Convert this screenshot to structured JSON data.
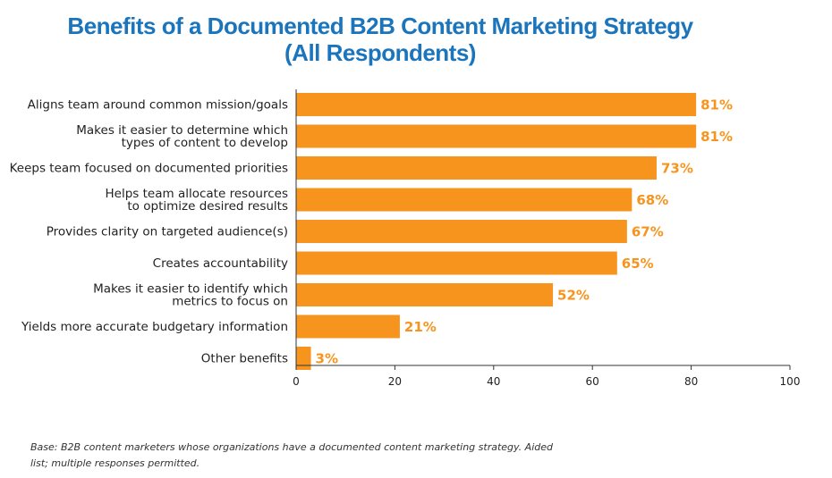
{
  "title_line1": "Benefits of a Documented B2B Content Marketing Strategy",
  "title_line2": "(All Respondents)",
  "footnote": "Base: B2B content marketers whose organizations have a documented content marketing strategy. Aided list; multiple responses permitted.",
  "chart_data": {
    "type": "bar",
    "orientation": "horizontal",
    "categories": [
      [
        "Aligns team around common mission/goals"
      ],
      [
        "Makes it easier to determine which",
        "types of content to develop"
      ],
      [
        "Keeps team focused on documented priorities"
      ],
      [
        "Helps team allocate resources",
        "to optimize desired results"
      ],
      [
        "Provides clarity on targeted audience(s)"
      ],
      [
        "Creates accountability"
      ],
      [
        "Makes it easier to identify which",
        "metrics to focus on"
      ],
      [
        "Yields more accurate budgetary information"
      ],
      [
        "Other benefits"
      ]
    ],
    "values": [
      81,
      81,
      73,
      68,
      67,
      65,
      52,
      21,
      3
    ],
    "value_labels": [
      "81%",
      "81%",
      "73%",
      "68%",
      "67%",
      "65%",
      "52%",
      "21%",
      "3%"
    ],
    "x_ticks": [
      0,
      20,
      40,
      60,
      80,
      100
    ],
    "xlim": [
      0,
      100
    ],
    "bar_color": "#f7941d",
    "label_color": "#f7941d",
    "grid": false,
    "legend": false
  }
}
